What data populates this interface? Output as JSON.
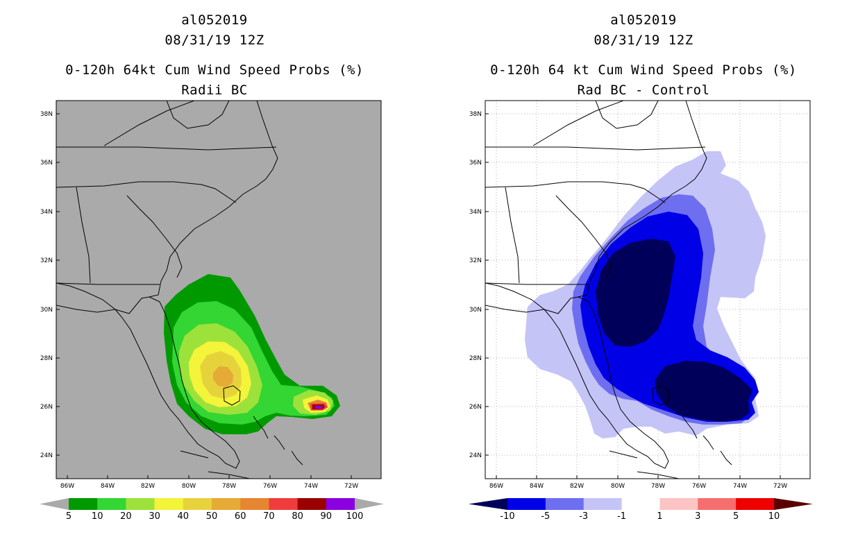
{
  "panels": [
    {
      "storm_id": "al052019",
      "datetime": "08/31/19 12Z",
      "title": "0-120h 64kt Cum Wind Speed Probs (%)",
      "subtitle": "Radii BC"
    },
    {
      "storm_id": "al052019",
      "datetime": "08/31/19 12Z",
      "title": "0-120h 64 kt Cum Wind Speed Probs (%)",
      "subtitle": "Rad BC - Control"
    }
  ],
  "chart_data": [
    {
      "type": "heatmap",
      "title": "0-120h 64kt Cum Wind Speed Probs (%) Radii BC",
      "units": "%",
      "x_ticks": [
        "86W",
        "84W",
        "82W",
        "80W",
        "78W",
        "76W",
        "74W",
        "72W"
      ],
      "y_ticks": [
        "24N",
        "26N",
        "28N",
        "30N",
        "32N",
        "34N",
        "36N",
        "38N"
      ],
      "xlim": [
        -86.5,
        -70.5
      ],
      "ylim": [
        23,
        38.5
      ],
      "colorbar": {
        "labels": [
          "5",
          "10",
          "20",
          "30",
          "40",
          "50",
          "60",
          "70",
          "80",
          "90",
          "100"
        ],
        "colors": [
          "#009a00",
          "#33d633",
          "#9de23a",
          "#f4f43a",
          "#e6d33c",
          "#e6aa37",
          "#e68630",
          "#f03c3c",
          "#9b0000",
          "#8a00e0"
        ],
        "under_color": "#aaaaaa",
        "over_color": "#aaaaaa"
      },
      "background_color": "#aaaaaa",
      "grid": false,
      "max_region": {
        "lon": -73.5,
        "lat": 26.0,
        "value": 100
      }
    },
    {
      "type": "heatmap",
      "title": "0-120h 64 kt Cum Wind Speed Probs (%) Rad BC - Control",
      "units": "%",
      "x_ticks": [
        "86W",
        "84W",
        "82W",
        "80W",
        "78W",
        "76W",
        "74W",
        "72W"
      ],
      "y_ticks": [
        "24N",
        "26N",
        "28N",
        "30N",
        "32N",
        "34N",
        "36N",
        "38N"
      ],
      "xlim": [
        -86.5,
        -70.5
      ],
      "ylim": [
        23,
        38.5
      ],
      "colorbar": {
        "labels": [
          "-10",
          "-5",
          "-3",
          "-1",
          "1",
          "3",
          "5",
          "10"
        ],
        "colors": [
          "#0000e6",
          "#6e6ef0",
          "#c4c4f7",
          "#ffffff",
          "#fcc4c4",
          "#f76e6e",
          "#ee0000"
        ],
        "under_color": "#00005a",
        "over_color": "#5a0000"
      },
      "background_color": "#ffffff",
      "grid": true,
      "min_region": {
        "lon": -79.5,
        "lat": 30.0,
        "value": -10
      }
    }
  ]
}
